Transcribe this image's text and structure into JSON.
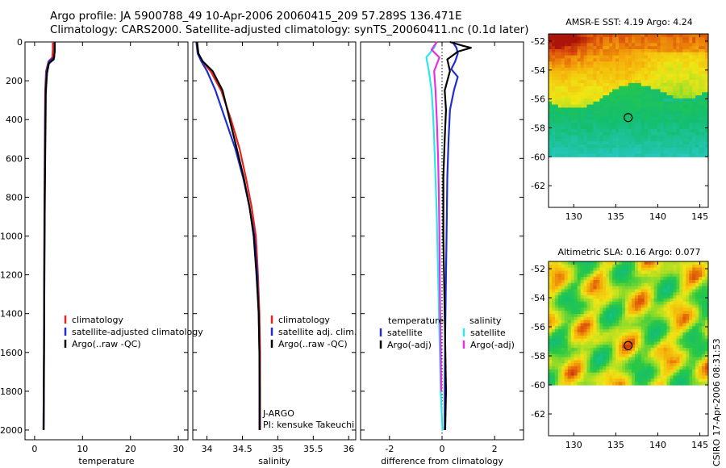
{
  "header": {
    "line1": "Argo profile: JA 5900788_49 10-Apr-2006 20060415_209 57.289S 136.471E",
    "line2": "Climatology: CARS2000. Satellite-adjusted climatology: synTS_20060411.nc (0.1d later)"
  },
  "stamp": "CSIRO 17-Apr-2006 08:31:53",
  "colors": {
    "red": "#e8231d",
    "blue": "#1f2ecc",
    "black": "#000000",
    "cyan": "#2ee6e6",
    "magenta": "#e62ee6"
  },
  "chart_data": [
    {
      "id": "temperature",
      "type": "line",
      "xlabel": "temperature",
      "ylabel": "",
      "xlim": [
        -2,
        32
      ],
      "ylim": [
        2050,
        0
      ],
      "xticks": [
        0,
        10,
        20,
        30
      ],
      "xtick_labels": [
        "0",
        "10",
        "20",
        "30"
      ],
      "yticks": [
        0,
        200,
        400,
        600,
        800,
        1000,
        1200,
        1400,
        1600,
        1800,
        2000
      ],
      "ytick_labels": [
        "0",
        "200",
        "400",
        "600",
        "800",
        "1000",
        "1200",
        "1400",
        "1600",
        "1800",
        "2000"
      ],
      "legend": {
        "placement": "lower-middle",
        "entries": [
          {
            "label": "climatology",
            "color": "red"
          },
          {
            "label": "satellite-adjusted climatology",
            "color": "blue"
          },
          {
            "label": "Argo(..raw -QC)",
            "color": "black"
          }
        ]
      },
      "series": [
        {
          "name": "climatology",
          "color": "red",
          "x": [
            3.8,
            3.8,
            3.7,
            2.9,
            2.4,
            2.2,
            2.15,
            2.1,
            2.05,
            2.0,
            1.95,
            1.9,
            1.85
          ],
          "y": [
            0,
            40,
            80,
            100,
            150,
            250,
            400,
            600,
            800,
            1200,
            1600,
            1800,
            2000
          ]
        },
        {
          "name": "satellite-adjusted climatology",
          "color": "blue",
          "x": [
            4.2,
            4.2,
            4.1,
            3.0,
            2.5,
            2.3,
            2.2,
            2.15,
            2.1,
            2.0,
            1.95,
            1.9,
            1.85
          ],
          "y": [
            0,
            40,
            80,
            100,
            150,
            250,
            400,
            600,
            800,
            1200,
            1600,
            1800,
            2000
          ]
        },
        {
          "name": "Argo(..raw -QC)",
          "color": "black",
          "x": [
            4.2,
            4.2,
            4.0,
            3.0,
            2.6,
            2.35,
            2.3,
            2.2,
            2.1,
            2.0,
            1.9
          ],
          "y": [
            0,
            50,
            90,
            110,
            160,
            260,
            400,
            600,
            900,
            1400,
            2000
          ]
        }
      ]
    },
    {
      "id": "salinity",
      "type": "line",
      "xlabel": "salinity",
      "ylabel": "",
      "xlim": [
        33.8,
        36.1
      ],
      "ylim": [
        2050,
        0
      ],
      "xticks": [
        34,
        34.5,
        35,
        35.5,
        36
      ],
      "xtick_labels": [
        "34",
        "34.5",
        "35",
        "35.5",
        "36"
      ],
      "legend": {
        "placement": "lower-right",
        "entries": [
          {
            "label": "climatology",
            "color": "red"
          },
          {
            "label": "satellite adj. clim.",
            "color": "blue"
          },
          {
            "label": "Argo(..raw -QC)",
            "color": "black"
          }
        ]
      },
      "annotation": {
        "line1": "J-ARGO",
        "line2": "PI: kensuke Takeuchi"
      },
      "series": [
        {
          "name": "climatology",
          "color": "red",
          "x": [
            33.85,
            33.87,
            33.93,
            34.05,
            34.2,
            34.34,
            34.46,
            34.55,
            34.63,
            34.69,
            34.72,
            34.74,
            34.75,
            34.75,
            34.75
          ],
          "y": [
            0,
            60,
            100,
            150,
            250,
            400,
            550,
            700,
            850,
            1000,
            1200,
            1400,
            1600,
            1800,
            2000
          ]
        },
        {
          "name": "satellite adj. clim.",
          "color": "blue",
          "x": [
            33.85,
            33.87,
            33.92,
            34.0,
            34.12,
            34.26,
            34.4,
            34.51,
            34.6,
            34.67,
            34.71,
            34.73,
            34.74,
            34.74,
            34.74
          ],
          "y": [
            0,
            60,
            100,
            150,
            250,
            400,
            550,
            700,
            850,
            1000,
            1200,
            1400,
            1600,
            1800,
            2000
          ]
        },
        {
          "name": "Argo(..raw -QC)",
          "color": "black",
          "x": [
            33.86,
            33.88,
            33.94,
            34.08,
            34.22,
            34.32,
            34.42,
            34.52,
            34.6,
            34.66,
            34.7,
            34.73,
            34.74,
            34.745,
            34.745
          ],
          "y": [
            0,
            60,
            100,
            150,
            250,
            400,
            550,
            700,
            850,
            1000,
            1200,
            1400,
            1600,
            1800,
            2000
          ]
        }
      ]
    },
    {
      "id": "difference",
      "type": "line",
      "xlabel": "difference from climatology",
      "ylabel": "",
      "xlim": [
        -3.1,
        3.1
      ],
      "ylim": [
        2050,
        0
      ],
      "xticks": [
        -2,
        0,
        2
      ],
      "xtick_labels": [
        "-2",
        "0",
        "2"
      ],
      "zero_line": true,
      "legend": {
        "placement": "lower-middle",
        "columns": [
          {
            "heading": "temperature",
            "entries": [
              {
                "label": "satellite",
                "color": "blue"
              },
              {
                "label": "Argo(-adj)",
                "color": "black"
              }
            ]
          },
          {
            "heading": "salinity",
            "entries": [
              {
                "label": "satellite",
                "color": "cyan"
              },
              {
                "label": "Argo(-adj)",
                "color": "magenta"
              }
            ]
          }
        ]
      },
      "series": [
        {
          "name": "temperature satellite",
          "color": "blue",
          "x": [
            0.4,
            0.55,
            0.6,
            0.5,
            0.35,
            0.6,
            0.45,
            0.3,
            0.25,
            0.2,
            0.18,
            0.15,
            0.12,
            0.1,
            0.1
          ],
          "y": [
            0,
            30,
            60,
            100,
            140,
            180,
            250,
            350,
            500,
            700,
            900,
            1200,
            1500,
            1800,
            2000
          ]
        },
        {
          "name": "temperature Argo(-adj)",
          "color": "black",
          "x": [
            0.3,
            0.8,
            1.1,
            0.6,
            0.2,
            0.3,
            0.1,
            0.15,
            0.1,
            0.05,
            0.05,
            0.1,
            0.15,
            0.12
          ],
          "y": [
            0,
            20,
            30,
            50,
            90,
            150,
            250,
            350,
            500,
            700,
            1000,
            1400,
            1800,
            2000
          ]
        },
        {
          "name": "salinity satellite",
          "color": "cyan",
          "x": [
            -0.2,
            -0.3,
            -0.6,
            -0.5,
            -0.4,
            -0.35,
            -0.3,
            -0.25,
            -0.2,
            -0.15,
            -0.1,
            -0.05,
            0.0,
            0.02
          ],
          "y": [
            0,
            30,
            80,
            150,
            250,
            350,
            500,
            700,
            900,
            1200,
            1500,
            1800,
            1950,
            2000
          ]
        },
        {
          "name": "salinity Argo(-adj)",
          "color": "magenta",
          "x": [
            -0.2,
            -0.4,
            -0.1,
            -0.3,
            -0.25,
            -0.2,
            -0.15,
            -0.12,
            -0.1,
            -0.08,
            -0.05,
            -0.03
          ],
          "y": [
            0,
            40,
            80,
            150,
            250,
            400,
            600,
            800,
            1000,
            1300,
            1600,
            1800
          ]
        }
      ]
    },
    {
      "id": "sst-map",
      "type": "heatmap",
      "title": "AMSR-E SST: 4.19 Argo: 4.24",
      "xlim": [
        127,
        146
      ],
      "ylim": [
        -63.5,
        -51.5
      ],
      "data_ylim": [
        -60,
        -51.5
      ],
      "xticks": [
        130,
        135,
        140,
        145
      ],
      "xtick_labels": [
        "130",
        "135",
        "140",
        "145"
      ],
      "yticks": [
        -52,
        -54,
        -56,
        -58,
        -60,
        -62
      ],
      "ytick_labels": [
        "-52",
        "-54",
        "-56",
        "-58",
        "-60",
        "-62"
      ],
      "marker": {
        "lon": 136.471,
        "lat": -57.289
      }
    },
    {
      "id": "sla-map",
      "type": "heatmap",
      "title": "Altimetric SLA: 0.16 Argo: 0.077",
      "xlim": [
        127,
        146
      ],
      "ylim": [
        -63.5,
        -51.5
      ],
      "data_ylim": [
        -60,
        -51.5
      ],
      "xticks": [
        130,
        135,
        140,
        145
      ],
      "xtick_labels": [
        "130",
        "135",
        "140",
        "145"
      ],
      "yticks": [
        -52,
        -54,
        -56,
        -58,
        -60,
        -62
      ],
      "ytick_labels": [
        "-52",
        "-54",
        "-56",
        "-58",
        "-60",
        "-62"
      ],
      "marker": {
        "lon": 136.471,
        "lat": -57.289
      }
    }
  ]
}
